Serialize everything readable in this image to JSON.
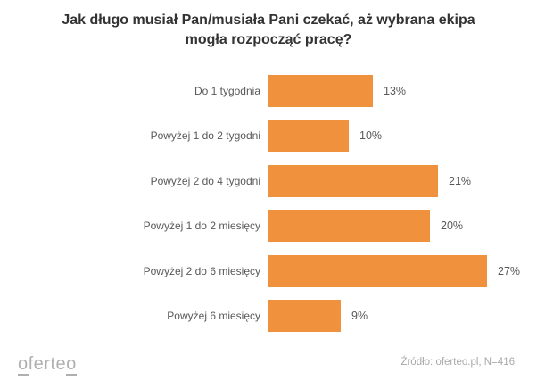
{
  "chart_data": {
    "type": "bar",
    "orientation": "horizontal",
    "title": "Jak długo musiał Pan/musiała Pani czekać, aż wybrana ekipa mogła rozpocząć pracę?",
    "title_lines": [
      "Jak długo musiał Pan/musiała Pani czekać, aż wybrana ekipa",
      "mogła rozpocząć pracę?"
    ],
    "categories": [
      "Do 1 tygodnia",
      "Powyżej 1 do 2 tygodni",
      "Powyżej 2 do 4 tygodni",
      "Powyżej 1 do 2 miesięcy",
      "Powyżej 2 do 6 miesięcy",
      "Powyżej 6 miesięcy"
    ],
    "values": [
      13,
      10,
      21,
      20,
      27,
      9
    ],
    "value_labels": [
      "13%",
      "10%",
      "21%",
      "20%",
      "27%",
      "9%"
    ],
    "xlim": [
      0,
      30
    ],
    "grid": false,
    "legend": false,
    "bar_color": "#F0923D",
    "label_color": "#595959",
    "title_color": "#333333"
  },
  "footer": {
    "logo_first": "o",
    "logo_middle": "ferte",
    "logo_last": "o",
    "source": "Źródło: oferteo.pl, N=416"
  }
}
